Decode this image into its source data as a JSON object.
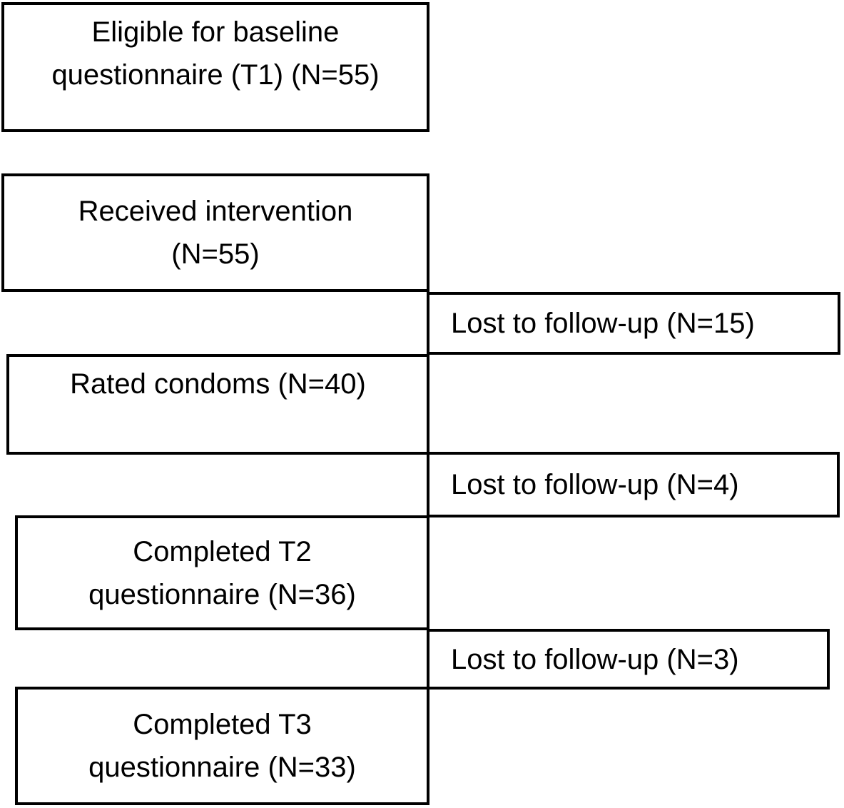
{
  "colors": {
    "background": "#ffffff",
    "line": "#000000",
    "text": "#000000"
  },
  "flow": {
    "steps": [
      {
        "name": "eligible_baseline",
        "lines": [
          "Eligible for baseline",
          "questionnaire (T1) (N=55)"
        ],
        "n": 55
      },
      {
        "name": "received_intervention",
        "lines": [
          "Received intervention",
          "(N=55)"
        ],
        "n": 55
      },
      {
        "name": "rated_condoms",
        "lines": [
          "Rated condoms (N=40)"
        ],
        "n": 40
      },
      {
        "name": "completed_t2",
        "lines": [
          "Completed T2",
          "questionnaire (N=36)"
        ],
        "n": 36
      },
      {
        "name": "completed_t3",
        "lines": [
          "Completed T3",
          "questionnaire (N=33)"
        ],
        "n": 33
      }
    ],
    "dropouts": [
      {
        "name": "lost_after_received",
        "label": "Lost to follow-up (N=15)",
        "n": 15
      },
      {
        "name": "lost_after_rated",
        "label": "Lost to follow-up (N=4)",
        "n": 4
      },
      {
        "name": "lost_after_t2",
        "label": "Lost to follow-up (N=3)",
        "n": 3
      }
    ]
  }
}
